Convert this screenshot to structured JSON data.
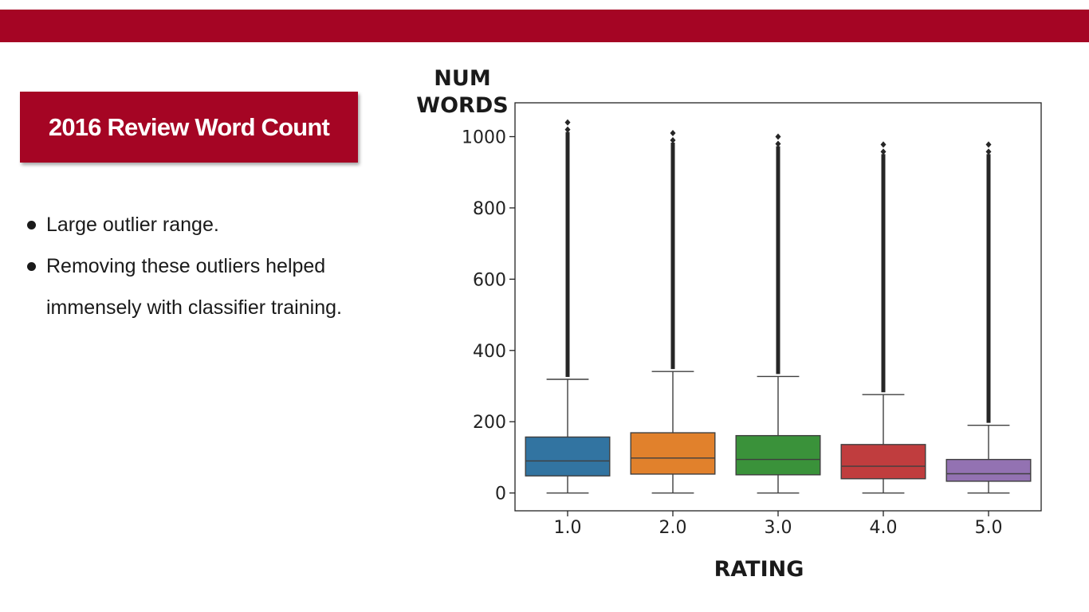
{
  "slide": {
    "title": "2016 Review Word Count",
    "bullets": [
      "Large outlier range.",
      "Removing these outliers helped immensely with classifier training."
    ],
    "colors": {
      "accent": "#a50524"
    }
  },
  "chart_data": {
    "type": "box",
    "ylabel_line1": "NUM",
    "ylabel_line2": "WORDS",
    "xlabel": "RATING",
    "ylim": [
      -50,
      1095
    ],
    "yticks": [
      0,
      200,
      400,
      600,
      800,
      1000
    ],
    "grid": false,
    "categories": [
      "1.0",
      "2.0",
      "3.0",
      "4.0",
      "5.0"
    ],
    "series": [
      {
        "category": "1.0",
        "min": 0,
        "q1": 48,
        "median": 90,
        "q3": 157,
        "whisker_high": 319,
        "outlier_max": 1040,
        "color": "#3274a1"
      },
      {
        "category": "2.0",
        "min": 0,
        "q1": 53,
        "median": 98,
        "q3": 169,
        "whisker_high": 341,
        "outlier_max": 1010,
        "color": "#e1812c"
      },
      {
        "category": "3.0",
        "min": 0,
        "q1": 51,
        "median": 94,
        "q3": 161,
        "whisker_high": 327,
        "outlier_max": 1000,
        "color": "#3a923a"
      },
      {
        "category": "4.0",
        "min": 0,
        "q1": 40,
        "median": 75,
        "q3": 136,
        "whisker_high": 276,
        "outlier_max": 978,
        "color": "#c03d3e"
      },
      {
        "category": "5.0",
        "min": 0,
        "q1": 33,
        "median": 54,
        "q3": 94,
        "whisker_high": 190,
        "outlier_max": 978,
        "color": "#9372b2"
      }
    ]
  }
}
